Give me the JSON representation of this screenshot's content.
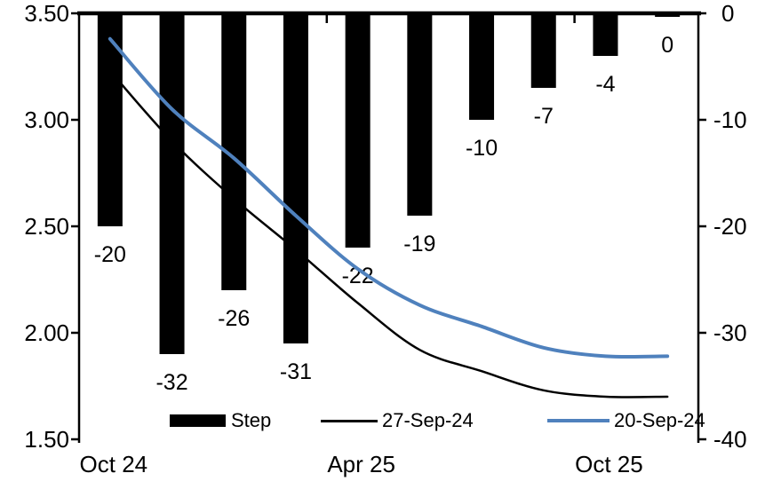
{
  "chart_data": {
    "type": "combo",
    "title": "",
    "bar_series": {
      "name": "Step",
      "axis": "right",
      "color": "#000000",
      "values": [
        -20,
        -32,
        -26,
        -31,
        -22,
        -19,
        -10,
        -7,
        -4,
        0
      ],
      "labels": [
        "-20",
        "-32",
        "-26",
        "-31",
        "-22",
        "-19",
        "-10",
        "-7",
        "-4",
        "0"
      ]
    },
    "line_series": [
      {
        "name": "27-Sep-24",
        "axis": "left",
        "color": "#000000",
        "stroke_width": 2.5,
        "values": [
          3.23,
          2.9,
          2.63,
          2.39,
          2.14,
          1.92,
          1.82,
          1.73,
          1.7,
          1.7
        ]
      },
      {
        "name": "20-Sep-24",
        "axis": "left",
        "color": "#4F81BD",
        "stroke_width": 4,
        "values": [
          3.38,
          3.05,
          2.82,
          2.55,
          2.3,
          2.13,
          2.03,
          1.93,
          1.89,
          1.89
        ]
      }
    ],
    "x_axis": {
      "tick_labels": [
        "Oct 24",
        "Apr 25",
        "Oct 25"
      ],
      "tick_label_category_index": [
        0,
        4,
        8
      ],
      "boundary_tick_after_category": [
        3,
        7
      ]
    },
    "left_axis": {
      "min": 1.5,
      "max": 3.5,
      "tick_labels": [
        "3.50",
        "3.00",
        "2.50",
        "2.00",
        "1.50"
      ]
    },
    "right_axis": {
      "min": -40,
      "max": 0,
      "tick_labels": [
        "0",
        "-10",
        "-20",
        "-30",
        "-40"
      ]
    },
    "legend_position": "bottom",
    "grid": false
  }
}
